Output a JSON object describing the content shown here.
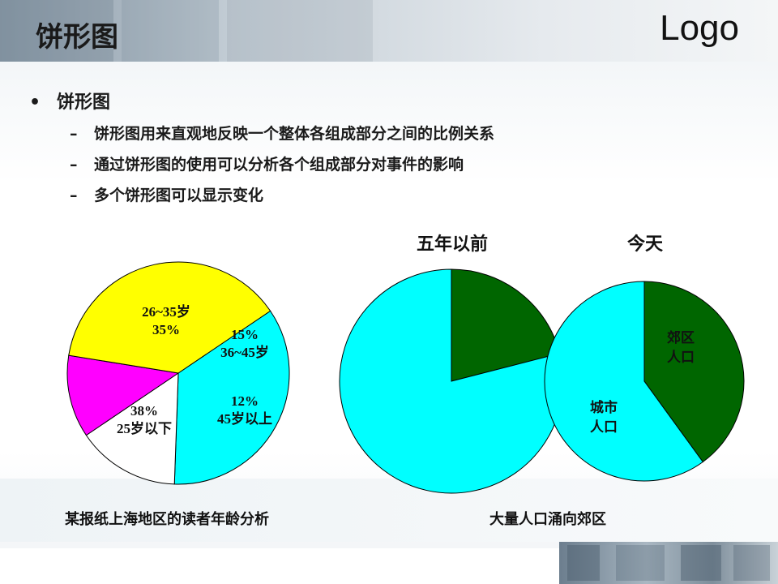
{
  "header": {
    "title": "饼形图",
    "logo": "Logo"
  },
  "bullets": {
    "main": "饼形图",
    "subs": [
      "饼形图用来直观地反映一个整体各组成部分之间的比例关系",
      "通过饼形图的使用可以分析各个组成部分对事件的影响",
      "多个饼形图可以显示变化"
    ]
  },
  "pie_titles": {
    "before": "五年以前",
    "today": "今天"
  },
  "captions": {
    "left": "某报纸上海地区的读者年龄分析",
    "right": "大量人口涌向郊区"
  },
  "colors": {
    "cyan": "#00FFFF",
    "yellow": "#FFFF00",
    "magenta": "#FF00FF",
    "green": "#006600",
    "white": "#FFFFFF"
  },
  "chart_data": [
    {
      "type": "pie",
      "caption": "某报纸上海地区的读者年龄分析",
      "slices": [
        {
          "label": "26~35岁",
          "value": 35,
          "value_text": "35%",
          "color": "#00FFFF"
        },
        {
          "label": "36~45岁",
          "value": 15,
          "value_text": "15%",
          "color": "#FFFFFF"
        },
        {
          "label": "45岁以上",
          "value": 12,
          "value_text": "12%",
          "color": "#FF00FF"
        },
        {
          "label": "25岁以下",
          "value": 38,
          "value_text": "38%",
          "color": "#FFFF00"
        }
      ]
    },
    {
      "type": "pie",
      "title": "五年以前",
      "slices": [
        {
          "label": "",
          "value": 21,
          "color": "#006600"
        },
        {
          "label": "",
          "value": 79,
          "color": "#00FFFF"
        }
      ]
    },
    {
      "type": "pie",
      "title": "今天",
      "slices": [
        {
          "label": "郊区人口",
          "lines": [
            "郊区",
            "人口"
          ],
          "value": 40,
          "color": "#006600"
        },
        {
          "label": "城市人口",
          "lines": [
            "城市",
            "人口"
          ],
          "value": 60,
          "color": "#00FFFF"
        }
      ]
    }
  ]
}
